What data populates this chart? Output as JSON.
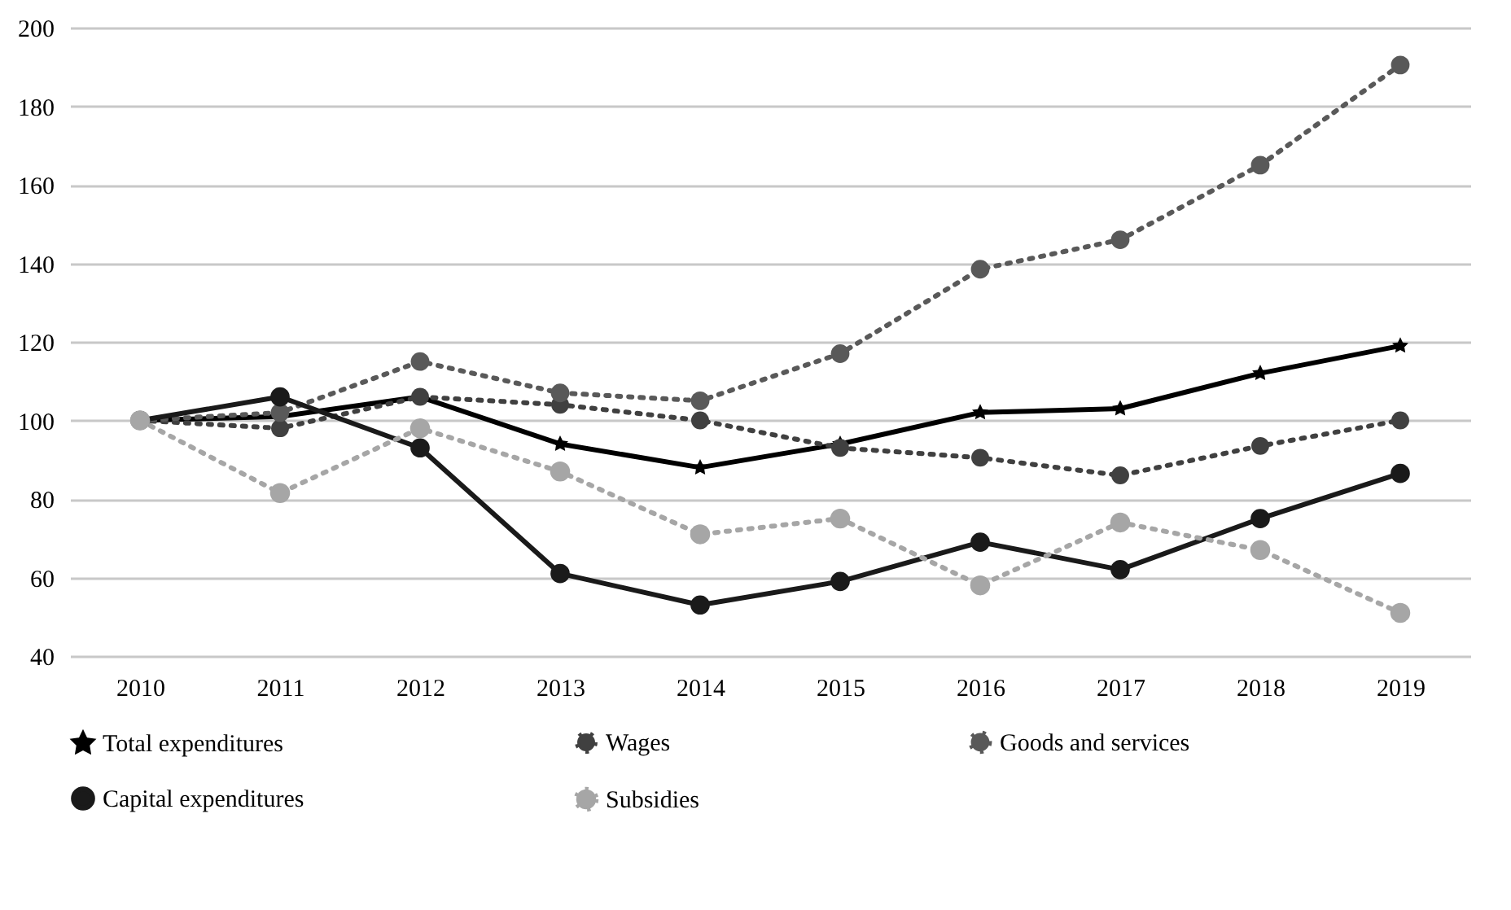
{
  "chart_data": {
    "type": "line",
    "categories": [
      "2010",
      "2011",
      "2012",
      "2013",
      "2014",
      "2015",
      "2016",
      "2017",
      "2018",
      "2019"
    ],
    "ylim": [
      40,
      200
    ],
    "yticks": [
      40,
      60,
      80,
      100,
      120,
      140,
      160,
      180,
      200
    ],
    "grid": "y",
    "legend": "bottom",
    "marker": "circle",
    "series": [
      {
        "name": "Total expenditures",
        "color": "#000000",
        "line_style": "solid",
        "marker": "star",
        "values": [
          100,
          101,
          106,
          94,
          88,
          94,
          102,
          103,
          112,
          119
        ]
      },
      {
        "name": "Wages",
        "color": "#404040",
        "line_style": "dotted",
        "values": [
          100,
          98,
          106,
          104,
          100,
          93,
          90.5,
          86,
          93.5,
          100
        ]
      },
      {
        "name": "Goods and services",
        "color": "#595959",
        "line_style": "dotted",
        "values": [
          100,
          102,
          115,
          107,
          105,
          117,
          138.5,
          146,
          165,
          190.5
        ]
      },
      {
        "name": "Capital expenditures",
        "color": "#1a1a1a",
        "line_style": "solid",
        "values": [
          100,
          106,
          93,
          61,
          53,
          59,
          69,
          62,
          75,
          86.5
        ]
      },
      {
        "name": "Subsidies",
        "color": "#a6a6a6",
        "line_style": "dotted",
        "values": [
          100,
          81.5,
          98,
          87,
          71,
          75,
          58,
          74,
          67,
          51
        ]
      }
    ]
  }
}
